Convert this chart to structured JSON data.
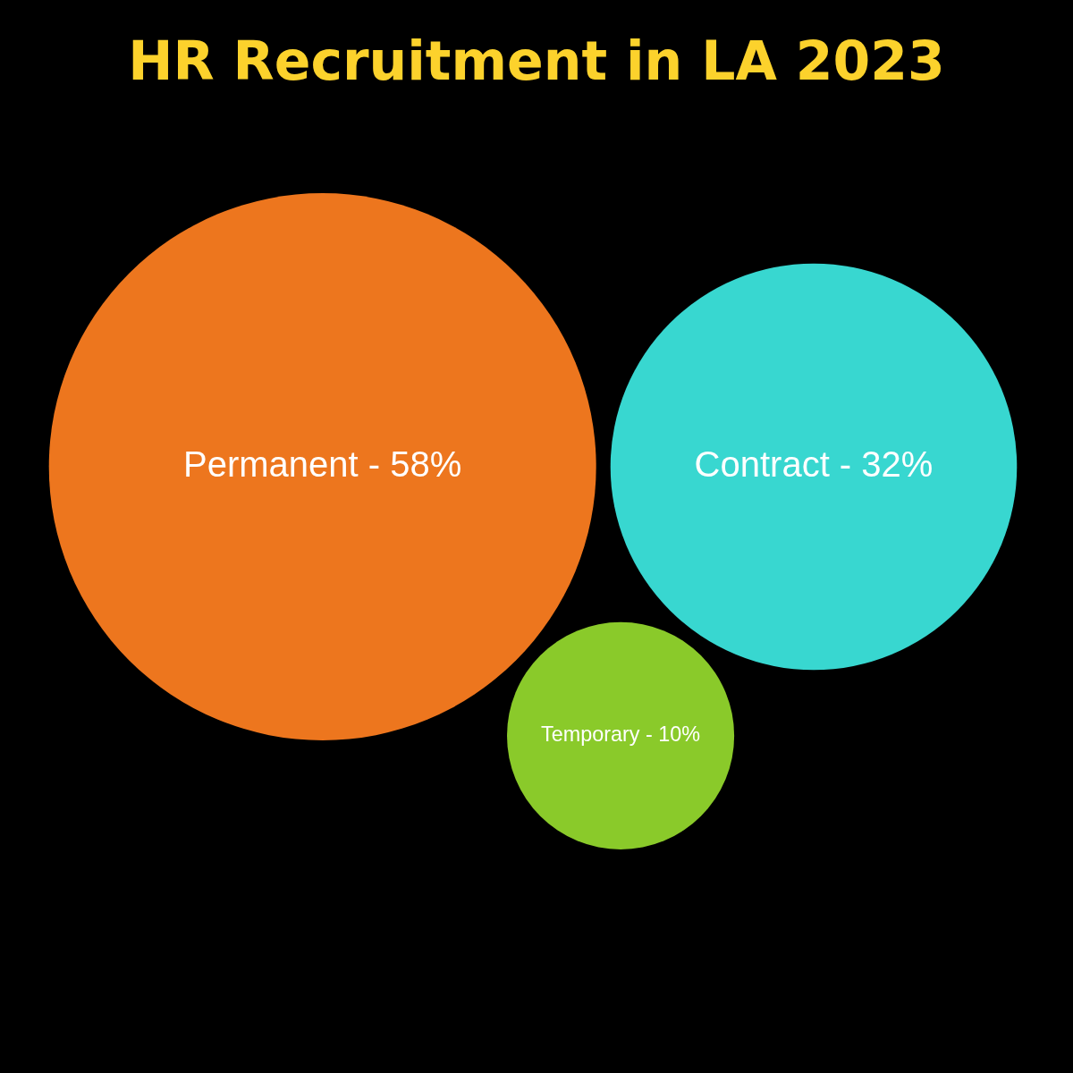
{
  "chart_data": {
    "type": "other",
    "title": "HR Recruitment in LA 2023",
    "categories": [
      "Permanent -",
      "Contract -",
      "Temporary -"
    ],
    "values": [
      58,
      32,
      10
    ],
    "value_labels": [
      "58%",
      "32%",
      "10%"
    ],
    "colors": [
      "#ed761e",
      "#38d7d0",
      "#8aca2a"
    ]
  }
}
